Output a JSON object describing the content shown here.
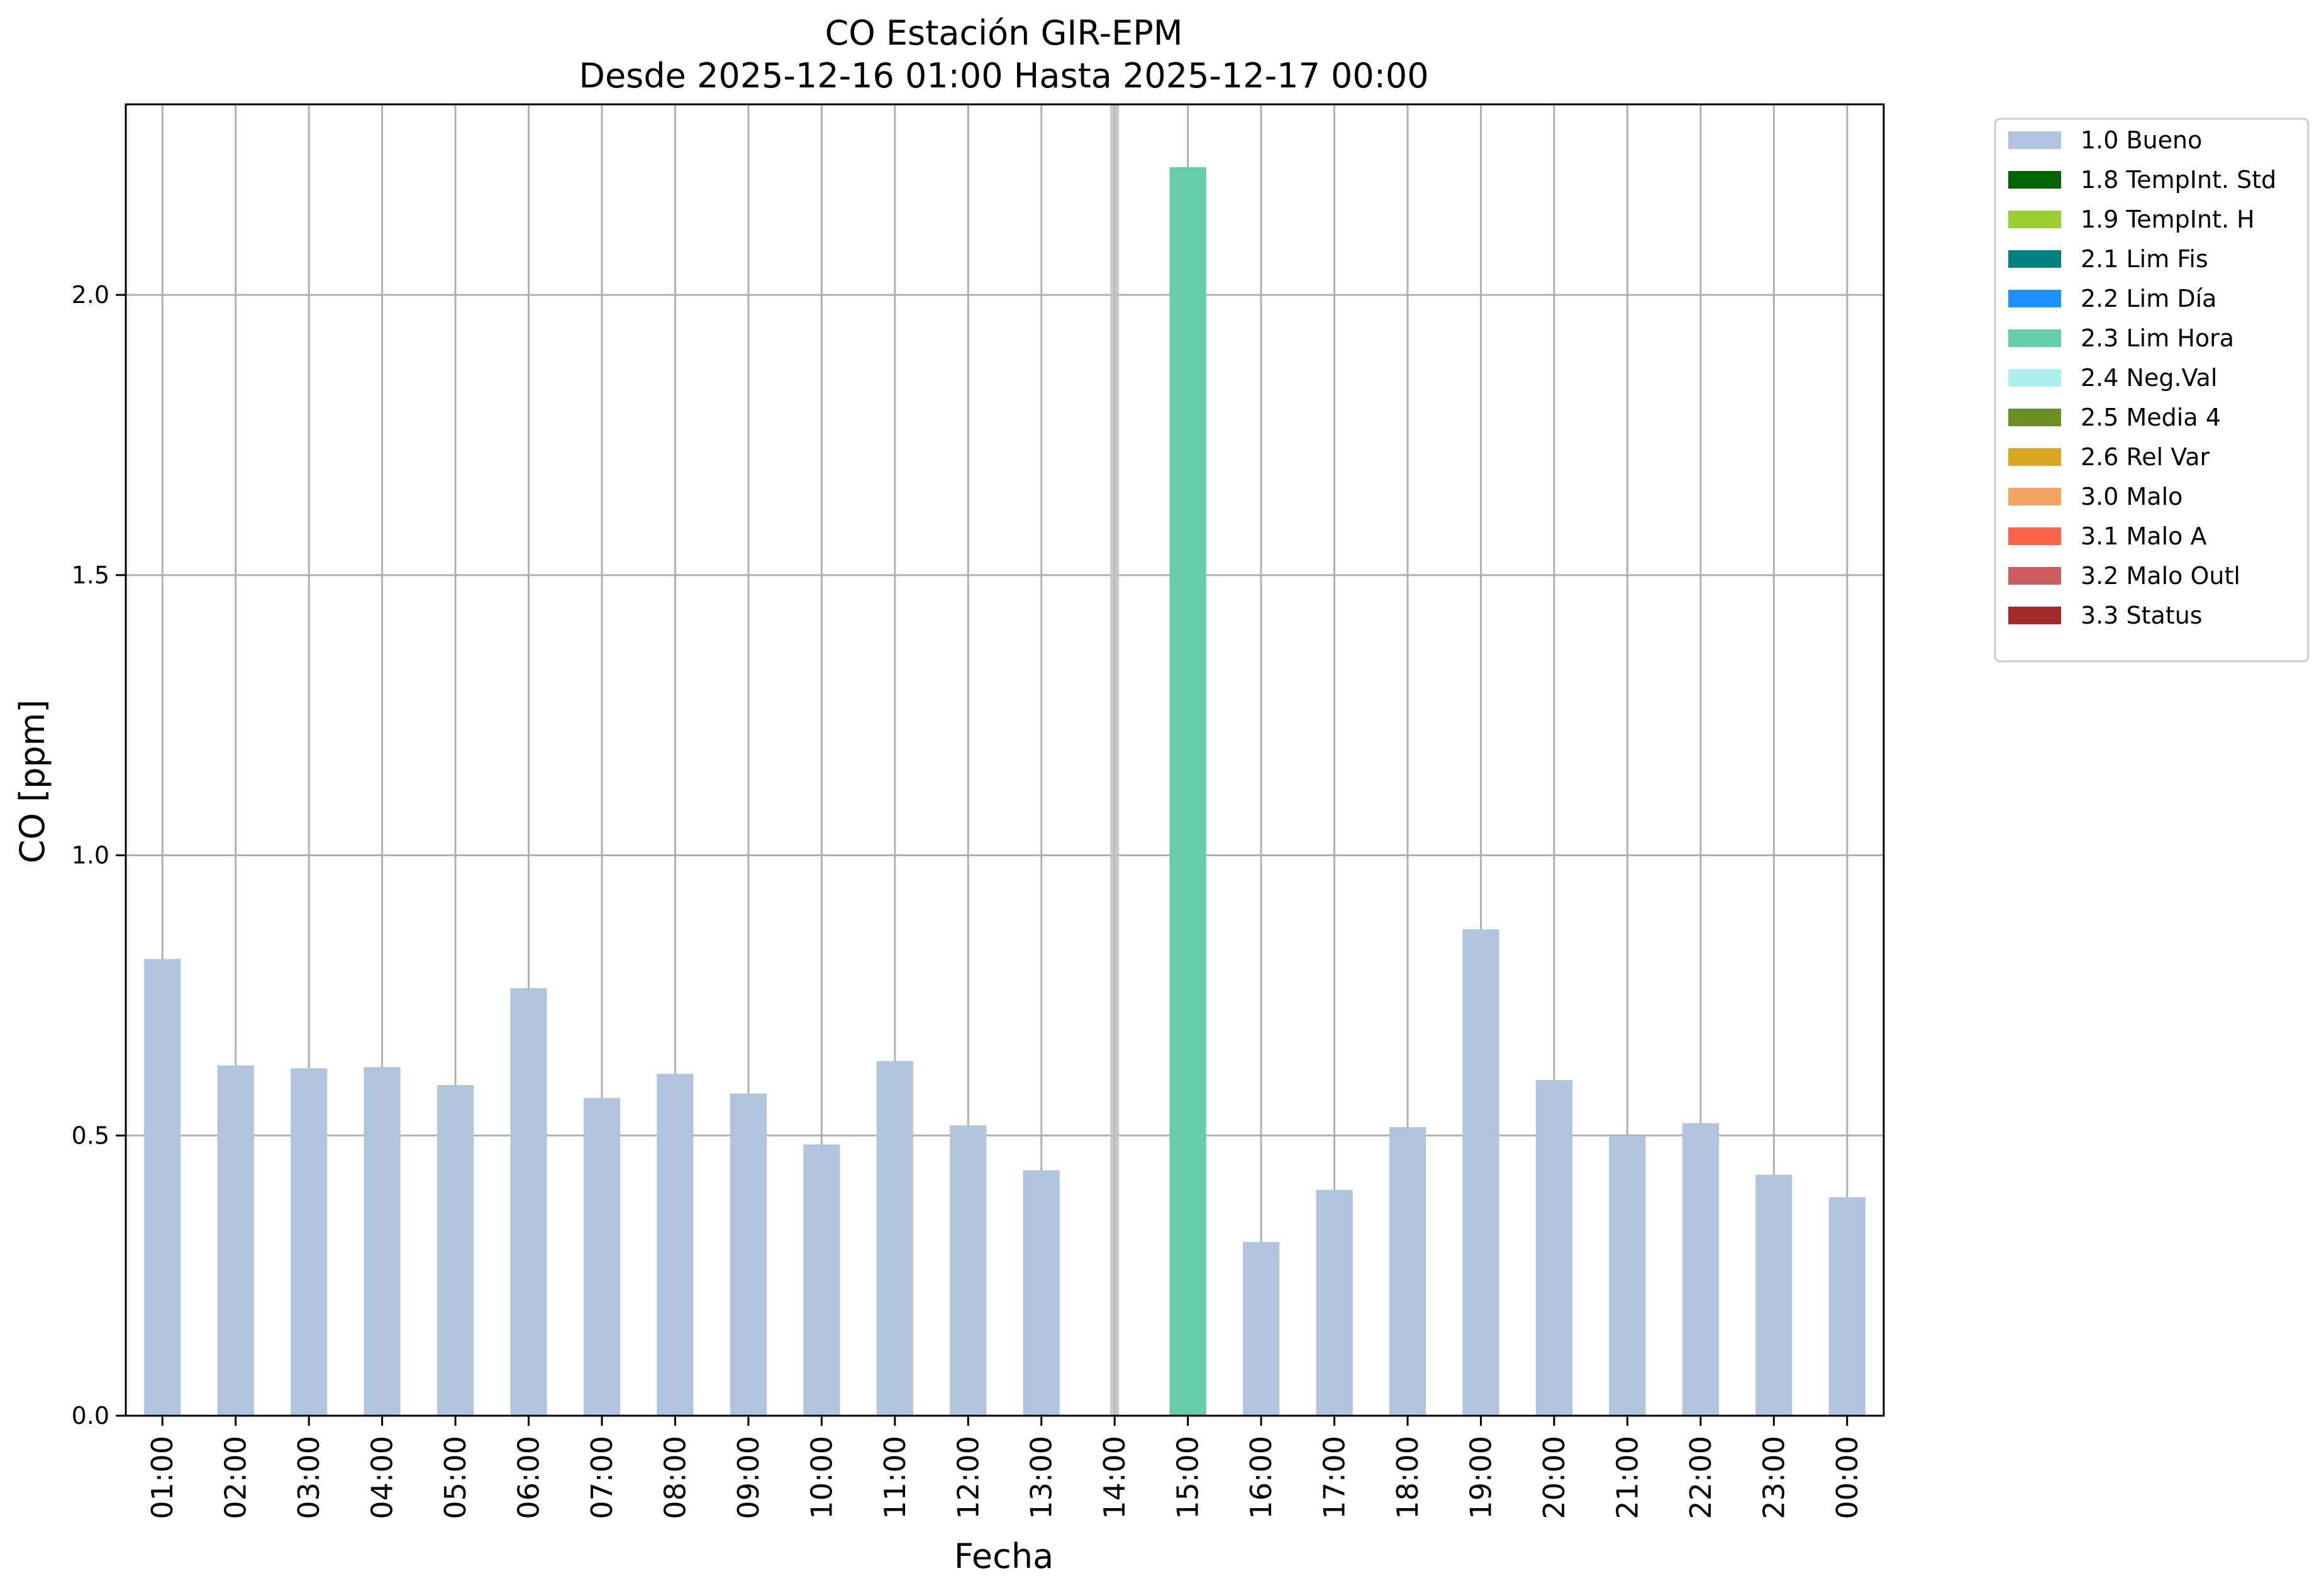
{
  "chart_data": {
    "type": "bar",
    "title": "CO Estación GIR-EPM",
    "subtitle": "Desde 2025-12-16 01:00 Hasta 2025-12-17 00:00",
    "xlabel": "Fecha",
    "ylabel": "CO [ppm]",
    "ylim": [
      0,
      2.34
    ],
    "yticks": [
      "0.0",
      "0.5",
      "1.0",
      "1.5",
      "2.0"
    ],
    "grid": true,
    "legend_position": "outside-top-right",
    "categories": [
      "01:00",
      "02:00",
      "03:00",
      "04:00",
      "05:00",
      "06:00",
      "07:00",
      "08:00",
      "09:00",
      "10:00",
      "11:00",
      "12:00",
      "13:00",
      "14:00",
      "15:00",
      "16:00",
      "17:00",
      "18:00",
      "19:00",
      "20:00",
      "21:00",
      "22:00",
      "23:00",
      "00:00"
    ],
    "values": [
      0.815,
      0.625,
      0.62,
      0.622,
      0.59,
      0.763,
      0.567,
      0.61,
      0.575,
      0.484,
      0.633,
      0.518,
      0.438,
      null,
      2.228,
      0.31,
      0.403,
      0.515,
      0.868,
      0.599,
      0.499,
      0.522,
      0.43,
      0.39
    ],
    "flags": [
      "1.0",
      "1.0",
      "1.0",
      "1.0",
      "1.0",
      "1.0",
      "1.0",
      "1.0",
      "1.0",
      "1.0",
      "1.0",
      "1.0",
      "1.0",
      null,
      "2.3",
      "1.0",
      "1.0",
      "1.0",
      "1.0",
      "1.0",
      "1.0",
      "1.0",
      "1.0",
      "1.0"
    ],
    "missing_marker_category": "14:00",
    "missing_marker_color": "#c0c0c0",
    "legend": [
      {
        "code": "1.0",
        "label": "1.0 Bueno",
        "color": "#b0c4de"
      },
      {
        "code": "1.8",
        "label": "1.8 TempInt. Std",
        "color": "#006400"
      },
      {
        "code": "1.9",
        "label": "1.9 TempInt. H",
        "color": "#9acd32"
      },
      {
        "code": "2.1",
        "label": "2.1 Lim Fis",
        "color": "#008080"
      },
      {
        "code": "2.2",
        "label": "2.2 Lim Día",
        "color": "#1e90ff"
      },
      {
        "code": "2.3",
        "label": "2.3 Lim Hora",
        "color": "#66cdaa"
      },
      {
        "code": "2.4",
        "label": "2.4 Neg.Val",
        "color": "#afeeee"
      },
      {
        "code": "2.5",
        "label": "2.5 Media 4",
        "color": "#6b8e23"
      },
      {
        "code": "2.6",
        "label": "2.6 Rel Var",
        "color": "#daa520"
      },
      {
        "code": "3.0",
        "label": "3.0 Malo",
        "color": "#f4a460"
      },
      {
        "code": "3.1",
        "label": "3.1 Malo A",
        "color": "#ff6347"
      },
      {
        "code": "3.2",
        "label": "3.2 Malo Outl",
        "color": "#cd5c5c"
      },
      {
        "code": "3.3",
        "label": "3.3 Status",
        "color": "#a52a2a"
      }
    ]
  }
}
